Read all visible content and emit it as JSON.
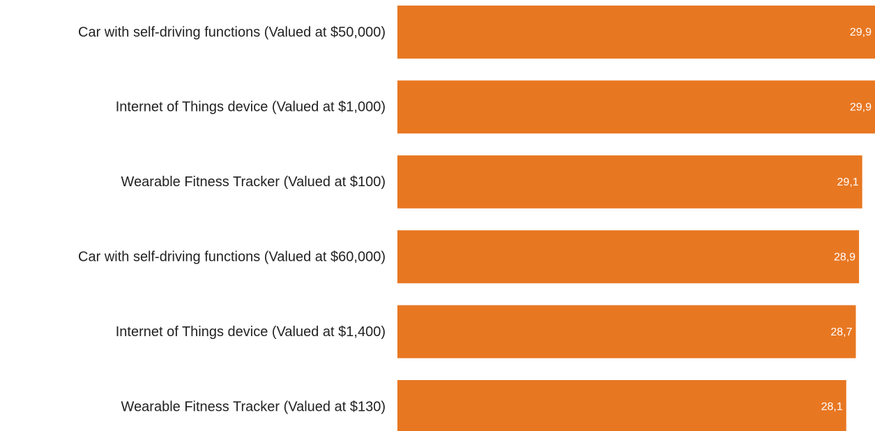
{
  "chart_data": {
    "type": "hbar",
    "categories": [
      "Car with self-driving functions (Valued at $50,000)",
      "Internet of Things device (Valued at $1,000)",
      "Wearable Fitness Tracker (Valued at $100)",
      "Car with self-driving functions (Valued at $60,000)",
      "Internet of Things device (Valued at $1,400)",
      "Wearable Fitness Tracker (Valued at $130)"
    ],
    "values": [
      29.9,
      29.9,
      29.1,
      28.9,
      28.7,
      28.1
    ],
    "value_labels": [
      "29,9",
      "29,9",
      "29,1",
      "28,9",
      "28,7",
      "28,1"
    ],
    "color": "#e87722"
  }
}
